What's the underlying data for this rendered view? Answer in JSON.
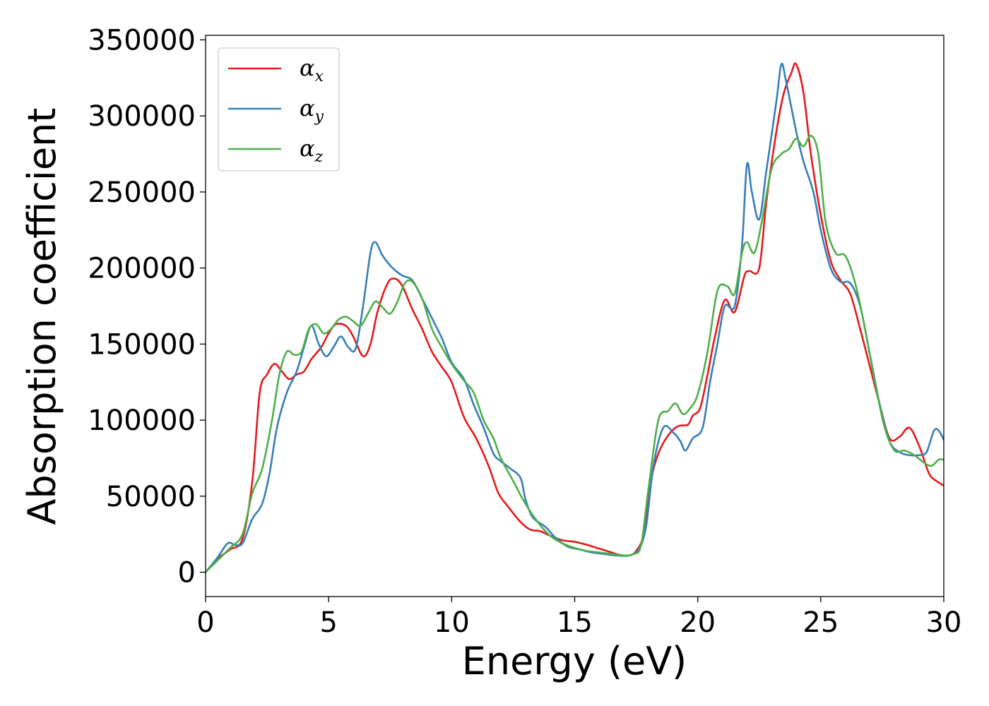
{
  "chart_data": {
    "type": "line",
    "title": "",
    "xlabel": "Energy (eV)",
    "ylabel": "Absorption coefficient",
    "xlim": [
      0,
      30
    ],
    "ylim": [
      -16000,
      353000
    ],
    "xticks": [
      0,
      5,
      10,
      15,
      20,
      25,
      30
    ],
    "xtick_labels": [
      "0",
      "5",
      "10",
      "15",
      "20",
      "25",
      "30"
    ],
    "yticks": [
      0,
      50000,
      100000,
      150000,
      200000,
      250000,
      300000,
      350000
    ],
    "ytick_labels": [
      "0",
      "50000",
      "100000",
      "150000",
      "200000",
      "250000",
      "300000",
      "350000"
    ],
    "grid": false,
    "legend_position": "upper-left",
    "series": [
      {
        "name": "α",
        "subscript": "x",
        "color": "#e41a1c",
        "points": [
          [
            0,
            0
          ],
          [
            0.5,
            9000
          ],
          [
            1.0,
            15000
          ],
          [
            1.5,
            22000
          ],
          [
            1.9,
            60000
          ],
          [
            2.2,
            118000
          ],
          [
            2.5,
            130000
          ],
          [
            2.8,
            137000
          ],
          [
            3.1,
            132000
          ],
          [
            3.4,
            127000
          ],
          [
            3.7,
            130000
          ],
          [
            4.0,
            132000
          ],
          [
            4.3,
            140000
          ],
          [
            4.7,
            148000
          ],
          [
            5.0,
            157000
          ],
          [
            5.3,
            163000
          ],
          [
            5.7,
            162000
          ],
          [
            6.0,
            155000
          ],
          [
            6.4,
            142000
          ],
          [
            6.7,
            150000
          ],
          [
            7.0,
            172000
          ],
          [
            7.4,
            190000
          ],
          [
            7.7,
            193000
          ],
          [
            8.0,
            188000
          ],
          [
            8.4,
            173000
          ],
          [
            8.8,
            160000
          ],
          [
            9.2,
            145000
          ],
          [
            9.6,
            135000
          ],
          [
            10.0,
            125000
          ],
          [
            10.5,
            102000
          ],
          [
            11.0,
            88000
          ],
          [
            11.5,
            70000
          ],
          [
            11.9,
            52000
          ],
          [
            12.3,
            43000
          ],
          [
            12.8,
            33000
          ],
          [
            13.2,
            28000
          ],
          [
            13.6,
            27000
          ],
          [
            14.0,
            24000
          ],
          [
            14.5,
            21000
          ],
          [
            15.0,
            20000
          ],
          [
            15.5,
            18000
          ],
          [
            16.0,
            15500
          ],
          [
            16.5,
            13000
          ],
          [
            16.8,
            11500
          ],
          [
            17.2,
            11000
          ],
          [
            17.5,
            14000
          ],
          [
            17.8,
            25000
          ],
          [
            18.1,
            60000
          ],
          [
            18.4,
            78000
          ],
          [
            18.8,
            90000
          ],
          [
            19.2,
            96000
          ],
          [
            19.6,
            97000
          ],
          [
            19.8,
            103000
          ],
          [
            20.1,
            108000
          ],
          [
            20.4,
            130000
          ],
          [
            20.7,
            155000
          ],
          [
            21.1,
            179000
          ],
          [
            21.5,
            171000
          ],
          [
            21.9,
            195000
          ],
          [
            22.1,
            198000
          ],
          [
            22.5,
            200000
          ],
          [
            22.8,
            245000
          ],
          [
            23.2,
            290000
          ],
          [
            23.5,
            315000
          ],
          [
            23.8,
            328000
          ],
          [
            24.0,
            334000
          ],
          [
            24.3,
            315000
          ],
          [
            24.6,
            275000
          ],
          [
            25.0,
            235000
          ],
          [
            25.4,
            205000
          ],
          [
            25.8,
            192000
          ],
          [
            26.2,
            183000
          ],
          [
            26.6,
            160000
          ],
          [
            27.0,
            135000
          ],
          [
            27.4,
            110000
          ],
          [
            27.8,
            88000
          ],
          [
            28.2,
            89000
          ],
          [
            28.6,
            95000
          ],
          [
            29.0,
            83000
          ],
          [
            29.4,
            65000
          ],
          [
            29.7,
            60000
          ],
          [
            30.0,
            57000
          ]
        ]
      },
      {
        "name": "α",
        "subscript": "y",
        "color": "#377eb8",
        "points": [
          [
            0,
            0
          ],
          [
            0.5,
            10000
          ],
          [
            0.9,
            19000
          ],
          [
            1.2,
            18000
          ],
          [
            1.5,
            19000
          ],
          [
            1.9,
            35000
          ],
          [
            2.3,
            45000
          ],
          [
            2.6,
            65000
          ],
          [
            2.9,
            95000
          ],
          [
            3.3,
            118000
          ],
          [
            3.7,
            132000
          ],
          [
            4.0,
            148000
          ],
          [
            4.3,
            162000
          ],
          [
            4.6,
            150000
          ],
          [
            4.9,
            142000
          ],
          [
            5.2,
            148000
          ],
          [
            5.5,
            155000
          ],
          [
            5.8,
            148000
          ],
          [
            6.1,
            147000
          ],
          [
            6.4,
            175000
          ],
          [
            6.7,
            210000
          ],
          [
            6.9,
            217000
          ],
          [
            7.2,
            208000
          ],
          [
            7.6,
            200000
          ],
          [
            8.0,
            195000
          ],
          [
            8.4,
            192000
          ],
          [
            8.8,
            180000
          ],
          [
            9.2,
            167000
          ],
          [
            9.6,
            154000
          ],
          [
            10.0,
            138000
          ],
          [
            10.5,
            127000
          ],
          [
            10.9,
            110000
          ],
          [
            11.3,
            95000
          ],
          [
            11.7,
            78000
          ],
          [
            12.0,
            73000
          ],
          [
            12.4,
            68000
          ],
          [
            12.8,
            62000
          ],
          [
            13.0,
            48000
          ],
          [
            13.3,
            36000
          ],
          [
            13.8,
            30000
          ],
          [
            14.2,
            23000
          ],
          [
            14.7,
            17000
          ],
          [
            15.2,
            15000
          ],
          [
            15.7,
            13000
          ],
          [
            16.2,
            12000
          ],
          [
            16.7,
            11000
          ],
          [
            17.2,
            11000
          ],
          [
            17.6,
            15000
          ],
          [
            17.9,
            30000
          ],
          [
            18.2,
            70000
          ],
          [
            18.6,
            95000
          ],
          [
            19.0,
            92000
          ],
          [
            19.3,
            86000
          ],
          [
            19.5,
            80000
          ],
          [
            19.8,
            88000
          ],
          [
            20.2,
            95000
          ],
          [
            20.5,
            125000
          ],
          [
            20.8,
            150000
          ],
          [
            21.1,
            175000
          ],
          [
            21.5,
            175000
          ],
          [
            21.8,
            215000
          ],
          [
            22.0,
            268000
          ],
          [
            22.2,
            250000
          ],
          [
            22.5,
            232000
          ],
          [
            22.8,
            265000
          ],
          [
            23.2,
            310000
          ],
          [
            23.4,
            334000
          ],
          [
            23.6,
            322000
          ],
          [
            24.0,
            290000
          ],
          [
            24.3,
            270000
          ],
          [
            24.7,
            250000
          ],
          [
            25.0,
            225000
          ],
          [
            25.4,
            200000
          ],
          [
            25.8,
            191000
          ],
          [
            26.2,
            190000
          ],
          [
            26.6,
            175000
          ],
          [
            27.0,
            143000
          ],
          [
            27.4,
            110000
          ],
          [
            27.8,
            86000
          ],
          [
            28.2,
            79000
          ],
          [
            28.6,
            77000
          ],
          [
            29.0,
            77000
          ],
          [
            29.3,
            79000
          ],
          [
            29.6,
            93000
          ],
          [
            29.8,
            93000
          ],
          [
            30.0,
            87000
          ]
        ]
      },
      {
        "name": "α",
        "subscript": "z",
        "color": "#4daf4a",
        "points": [
          [
            0,
            0
          ],
          [
            0.5,
            8000
          ],
          [
            1.0,
            16000
          ],
          [
            1.5,
            25000
          ],
          [
            1.9,
            52000
          ],
          [
            2.3,
            68000
          ],
          [
            2.7,
            100000
          ],
          [
            3.0,
            130000
          ],
          [
            3.3,
            145000
          ],
          [
            3.6,
            143000
          ],
          [
            3.9,
            145000
          ],
          [
            4.2,
            160000
          ],
          [
            4.5,
            163000
          ],
          [
            4.8,
            157000
          ],
          [
            5.1,
            160000
          ],
          [
            5.4,
            166000
          ],
          [
            5.7,
            168000
          ],
          [
            6.0,
            165000
          ],
          [
            6.3,
            162000
          ],
          [
            6.6,
            170000
          ],
          [
            6.9,
            178000
          ],
          [
            7.2,
            174000
          ],
          [
            7.5,
            170000
          ],
          [
            7.8,
            178000
          ],
          [
            8.1,
            190000
          ],
          [
            8.4,
            191000
          ],
          [
            8.8,
            180000
          ],
          [
            9.2,
            160000
          ],
          [
            9.6,
            148000
          ],
          [
            10.0,
            137000
          ],
          [
            10.5,
            126000
          ],
          [
            10.9,
            118000
          ],
          [
            11.3,
            100000
          ],
          [
            11.7,
            88000
          ],
          [
            12.0,
            75000
          ],
          [
            12.5,
            60000
          ],
          [
            13.0,
            45000
          ],
          [
            13.5,
            33000
          ],
          [
            14.0,
            24000
          ],
          [
            14.5,
            19000
          ],
          [
            15.0,
            16000
          ],
          [
            15.5,
            14000
          ],
          [
            16.0,
            13000
          ],
          [
            16.5,
            12000
          ],
          [
            17.0,
            11000
          ],
          [
            17.4,
            12000
          ],
          [
            17.7,
            18000
          ],
          [
            18.0,
            55000
          ],
          [
            18.4,
            100000
          ],
          [
            18.8,
            106000
          ],
          [
            19.1,
            111000
          ],
          [
            19.4,
            104000
          ],
          [
            19.7,
            108000
          ],
          [
            20.0,
            117000
          ],
          [
            20.4,
            145000
          ],
          [
            20.8,
            185000
          ],
          [
            21.2,
            188000
          ],
          [
            21.5,
            183000
          ],
          [
            21.8,
            210000
          ],
          [
            22.0,
            217000
          ],
          [
            22.3,
            210000
          ],
          [
            22.6,
            230000
          ],
          [
            23.0,
            265000
          ],
          [
            23.4,
            275000
          ],
          [
            23.7,
            278000
          ],
          [
            24.0,
            285000
          ],
          [
            24.3,
            280000
          ],
          [
            24.6,
            287000
          ],
          [
            24.9,
            275000
          ],
          [
            25.2,
            230000
          ],
          [
            25.6,
            210000
          ],
          [
            26.0,
            208000
          ],
          [
            26.4,
            190000
          ],
          [
            26.8,
            160000
          ],
          [
            27.2,
            125000
          ],
          [
            27.6,
            95000
          ],
          [
            28.0,
            80000
          ],
          [
            28.4,
            80000
          ],
          [
            28.8,
            77000
          ],
          [
            29.2,
            72000
          ],
          [
            29.5,
            70000
          ],
          [
            29.8,
            74000
          ],
          [
            30.0,
            74000
          ]
        ]
      }
    ]
  }
}
